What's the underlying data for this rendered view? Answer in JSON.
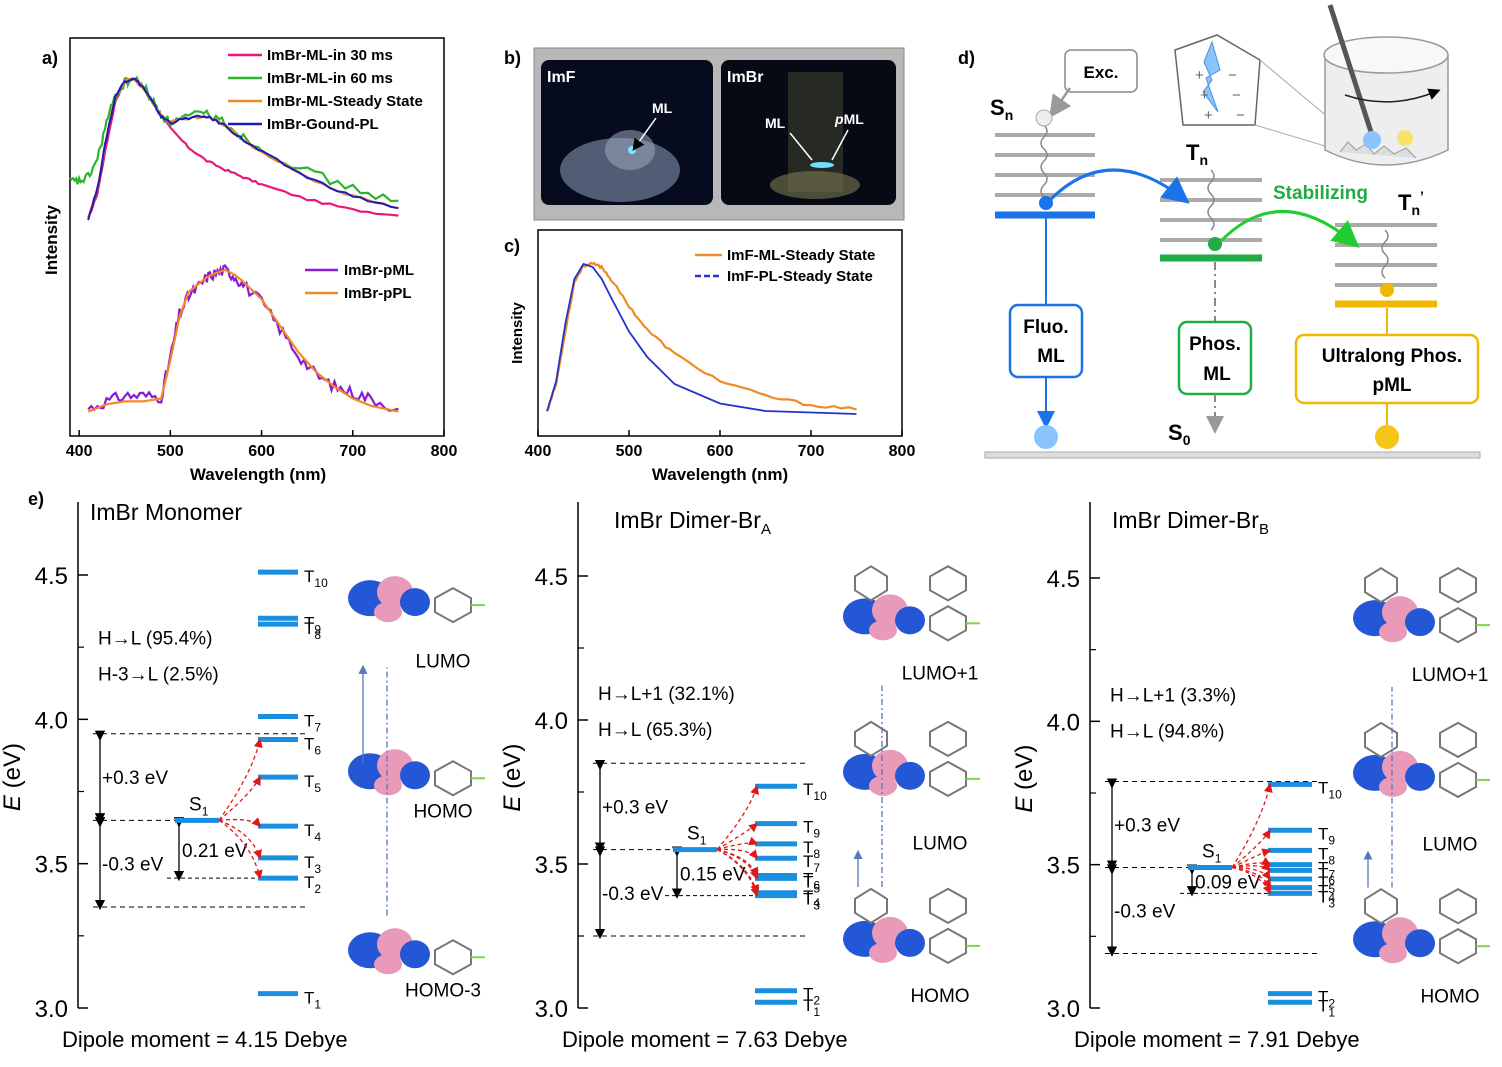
{
  "panel_a": {
    "label": "a)",
    "ylabel": "Intensity",
    "xlabel": "Wavelength (nm)",
    "xticks": [
      "400",
      "500",
      "600",
      "700",
      "800"
    ],
    "legend_top": [
      {
        "name": "ImBr-ML-in 30 ms",
        "color": "#e8187a"
      },
      {
        "name": "ImBr-ML-in 60 ms",
        "color": "#2db52d"
      },
      {
        "name": "ImBr-ML-Steady State",
        "color": "#f08a24"
      },
      {
        "name": "ImBr-Gound-PL",
        "color": "#1a1ab8"
      }
    ],
    "legend_bottom": [
      {
        "name": "ImBr-pML",
        "color": "#8a1ad6"
      },
      {
        "name": "ImBr-pPL",
        "color": "#f08a24"
      }
    ]
  },
  "panel_b": {
    "label": "b)",
    "left_title": "ImF",
    "left_ml": "ML",
    "right_title": "ImBr",
    "right_ml": "ML",
    "right_pml_p": "p",
    "right_pml_ml": "ML"
  },
  "panel_c": {
    "label": "c)",
    "ylabel": "Intensity",
    "xlabel": "Wavelength (nm)",
    "xticks": [
      "400",
      "500",
      "600",
      "700",
      "800"
    ],
    "legend": [
      {
        "name": "ImF-ML-Steady State",
        "color": "#f08a24"
      },
      {
        "name": "ImF-PL-Steady State",
        "color": "#2233cc"
      }
    ]
  },
  "panel_d": {
    "label": "d)",
    "exc": "Exc.",
    "sn": "S",
    "sn_sub": "n",
    "tn": "T",
    "tn_sub": "n",
    "tn2": "T",
    "tn2_sub": "n",
    "tn2_prime": "’",
    "stabilizing": "Stabilizing",
    "fluo_1": "Fluo.",
    "fluo_2": "ML",
    "phos_1": "Phos.",
    "phos_2": "ML",
    "ultra_1": "Ultralong Phos.",
    "ultra_2": "pML",
    "s0": "S",
    "s0_sub": "0",
    "charges": [
      "+",
      "−",
      "+",
      "−",
      "+",
      "−"
    ],
    "colors": {
      "blue": "#1a73e8",
      "green": "#22aa44",
      "yellow": "#f0b800"
    }
  },
  "panel_e": {
    "label": "e)",
    "ylabel_e": "E",
    "ylabel_unit": " (eV)",
    "yticks": [
      "4.5",
      "4.0",
      "3.5",
      "3.0"
    ],
    "panels": [
      {
        "title": "ImBr Monomer",
        "title_sub": "",
        "trans1": "H→L (95.4%)",
        "trans2": "H-3→L (2.5%)",
        "plus": "+0.3 eV",
        "minus": "-0.3 eV",
        "gap": "0.21 eV",
        "s1": "S",
        "s1_sub": "1",
        "orbitals": [
          "LUMO",
          "HOMO",
          "HOMO-3"
        ],
        "dipole": "Dipole moment = 4.15 Debye",
        "s1_energy": 3.65,
        "triplets": [
          {
            "name": "T",
            "sub": "1",
            "e": 3.05
          },
          {
            "name": "T",
            "sub": "2",
            "e": 3.45
          },
          {
            "name": "T",
            "sub": "3",
            "e": 3.52
          },
          {
            "name": "T",
            "sub": "4",
            "e": 3.63
          },
          {
            "name": "T",
            "sub": "5",
            "e": 3.8
          },
          {
            "name": "T",
            "sub": "6",
            "e": 3.93
          },
          {
            "name": "T",
            "sub": "7",
            "e": 4.01
          },
          {
            "name": "T",
            "sub": "8",
            "e": 4.33
          },
          {
            "name": "T",
            "sub": "9",
            "e": 4.35
          },
          {
            "name": "T",
            "sub": "10",
            "e": 4.51
          }
        ]
      },
      {
        "title": "ImBr Dimer-Br",
        "title_sub": "A",
        "trans1": "H→L+1 (32.1%)",
        "trans2": "H→L (65.3%)",
        "plus": "+0.3 eV",
        "minus": "-0.3 eV",
        "gap": "0.15 eV",
        "s1": "S",
        "s1_sub": "1",
        "orbitals": [
          "LUMO+1",
          "LUMO",
          "HOMO"
        ],
        "dipole": "Dipole moment = 7.63 Debye",
        "s1_energy": 3.55,
        "triplets": [
          {
            "name": "T",
            "sub": "1",
            "e": 3.02
          },
          {
            "name": "T",
            "sub": "2",
            "e": 3.06
          },
          {
            "name": "T",
            "sub": "3",
            "e": 3.39
          },
          {
            "name": "T",
            "sub": "4",
            "e": 3.4
          },
          {
            "name": "T",
            "sub": "5",
            "e": 3.45
          },
          {
            "name": "T",
            "sub": "6",
            "e": 3.46
          },
          {
            "name": "T",
            "sub": "7",
            "e": 3.52
          },
          {
            "name": "T",
            "sub": "8",
            "e": 3.57
          },
          {
            "name": "T",
            "sub": "9",
            "e": 3.64
          },
          {
            "name": "T",
            "sub": "10",
            "e": 3.77
          }
        ]
      },
      {
        "title": "ImBr Dimer-Br",
        "title_sub": "B",
        "trans1": "H→L+1 (3.3%)",
        "trans2": "H→L (94.8%)",
        "plus": "+0.3 eV",
        "minus": "-0.3 eV",
        "gap": "0.09 eV",
        "s1": "S",
        "s1_sub": "1",
        "orbitals": [
          "LUMO+1",
          "LUMO",
          "HOMO"
        ],
        "dipole": "Dipole moment = 7.91 Debye",
        "s1_energy": 3.49,
        "triplets": [
          {
            "name": "T",
            "sub": "1",
            "e": 3.02
          },
          {
            "name": "T",
            "sub": "2",
            "e": 3.05
          },
          {
            "name": "T",
            "sub": "3",
            "e": 3.4
          },
          {
            "name": "T",
            "sub": "4",
            "e": 3.42
          },
          {
            "name": "T",
            "sub": "5",
            "e": 3.45
          },
          {
            "name": "T",
            "sub": "6",
            "e": 3.48
          },
          {
            "name": "T",
            "sub": "7",
            "e": 3.5
          },
          {
            "name": "T",
            "sub": "8",
            "e": 3.55
          },
          {
            "name": "T",
            "sub": "9",
            "e": 3.62
          },
          {
            "name": "T",
            "sub": "10",
            "e": 3.78
          }
        ]
      }
    ]
  },
  "chart_data": [
    {
      "type": "line",
      "panel": "a-top",
      "xlabel": "Wavelength (nm)",
      "ylabel": "Intensity",
      "xlim": [
        390,
        800
      ],
      "series": [
        {
          "name": "ImBr-ML-in 30 ms",
          "x": [
            410,
            420,
            430,
            440,
            450,
            460,
            470,
            480,
            490,
            500,
            520,
            540,
            560,
            580,
            600,
            650,
            700,
            750
          ],
          "y": [
            0.05,
            0.22,
            0.55,
            0.85,
            0.97,
            1.0,
            0.93,
            0.84,
            0.75,
            0.66,
            0.53,
            0.44,
            0.38,
            0.33,
            0.28,
            0.18,
            0.11,
            0.07
          ]
        },
        {
          "name": "ImBr-ML-in 60 ms",
          "x": [
            390,
            400,
            410,
            420,
            430,
            440,
            450,
            460,
            470,
            480,
            490,
            500,
            520,
            540,
            560,
            580,
            600,
            650,
            700,
            750
          ],
          "y": [
            0.3,
            0.3,
            0.33,
            0.45,
            0.7,
            0.88,
            0.97,
            0.99,
            0.95,
            0.85,
            0.75,
            0.7,
            0.74,
            0.76,
            0.7,
            0.6,
            0.52,
            0.37,
            0.25,
            0.17
          ]
        },
        {
          "name": "ImBr-ML-Steady State",
          "x": [
            410,
            420,
            430,
            440,
            450,
            460,
            470,
            480,
            490,
            500,
            520,
            540,
            560,
            580,
            600,
            650,
            700,
            750
          ],
          "y": [
            0.05,
            0.25,
            0.6,
            0.88,
            0.98,
            1.0,
            0.94,
            0.84,
            0.74,
            0.7,
            0.73,
            0.74,
            0.68,
            0.58,
            0.5,
            0.33,
            0.2,
            0.12
          ]
        },
        {
          "name": "ImBr-Gound-PL",
          "x": [
            410,
            420,
            430,
            440,
            450,
            460,
            470,
            480,
            490,
            500,
            520,
            540,
            560,
            580,
            600,
            650,
            700,
            750
          ],
          "y": [
            0.05,
            0.25,
            0.6,
            0.88,
            0.98,
            1.0,
            0.94,
            0.84,
            0.74,
            0.7,
            0.73,
            0.74,
            0.68,
            0.58,
            0.5,
            0.33,
            0.2,
            0.12
          ]
        }
      ]
    },
    {
      "type": "line",
      "panel": "a-bottom",
      "xlabel": "Wavelength (nm)",
      "ylabel": "Intensity",
      "xlim": [
        390,
        800
      ],
      "series": [
        {
          "name": "ImBr-pML",
          "x": [
            410,
            430,
            450,
            470,
            490,
            500,
            510,
            520,
            530,
            540,
            550,
            560,
            570,
            580,
            600,
            620,
            640,
            660,
            680,
            700,
            720,
            750
          ],
          "y": [
            0.05,
            0.1,
            0.14,
            0.14,
            0.13,
            0.4,
            0.7,
            0.82,
            0.88,
            0.95,
            0.98,
            1.0,
            0.96,
            0.9,
            0.78,
            0.6,
            0.42,
            0.28,
            0.2,
            0.16,
            0.12,
            0.05
          ]
        },
        {
          "name": "ImBr-pPL",
          "x": [
            410,
            430,
            450,
            470,
            490,
            500,
            510,
            520,
            530,
            540,
            550,
            560,
            570,
            580,
            600,
            620,
            640,
            660,
            680,
            700,
            720,
            750
          ],
          "y": [
            0.03,
            0.08,
            0.1,
            0.1,
            0.12,
            0.38,
            0.68,
            0.85,
            0.9,
            0.95,
            0.98,
            1.0,
            0.97,
            0.92,
            0.8,
            0.62,
            0.44,
            0.3,
            0.2,
            0.12,
            0.07,
            0.03
          ]
        }
      ]
    },
    {
      "type": "line",
      "panel": "c",
      "xlabel": "Wavelength (nm)",
      "ylabel": "Intensity",
      "xlim": [
        400,
        800
      ],
      "series": [
        {
          "name": "ImF-ML-Steady State",
          "x": [
            410,
            420,
            430,
            440,
            450,
            460,
            470,
            480,
            500,
            520,
            550,
            600,
            650,
            700,
            750
          ],
          "y": [
            0.02,
            0.2,
            0.55,
            0.88,
            0.99,
            1.0,
            0.98,
            0.9,
            0.72,
            0.56,
            0.4,
            0.22,
            0.12,
            0.06,
            0.03
          ]
        },
        {
          "name": "ImF-PL-Steady State",
          "x": [
            410,
            420,
            430,
            440,
            450,
            460,
            470,
            480,
            500,
            520,
            550,
            600,
            650,
            700,
            750
          ],
          "y": [
            0.02,
            0.22,
            0.6,
            0.9,
            1.0,
            0.98,
            0.9,
            0.78,
            0.55,
            0.38,
            0.2,
            0.07,
            0.02,
            0.01,
            0.0
          ]
        }
      ]
    }
  ]
}
